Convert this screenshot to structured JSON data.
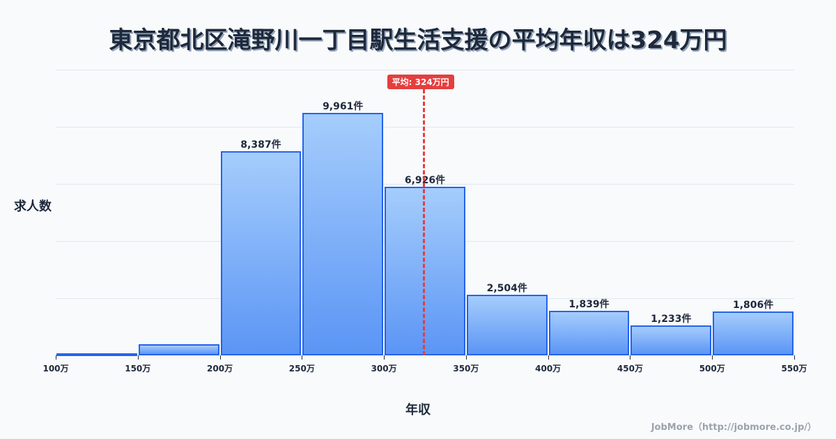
{
  "title": "東京都北区滝野川一丁目駅生活支援の平均年収は324万円",
  "footer": "JobMore（http://jobmore.co.jp/）",
  "colors": {
    "bar_top": "#a5cdfc",
    "bar_bottom": "#5b95f5",
    "bar_border": "#2563eb",
    "average_line": "#e53e3e",
    "background": "#f8fafc",
    "text": "#1e293b"
  },
  "chart_data": {
    "type": "bar",
    "title": "東京都北区滝野川一丁目駅生活支援の平均年収は324万円",
    "xlabel": "年収",
    "ylabel": "求人数",
    "bin_edges": [
      100,
      150,
      200,
      250,
      300,
      350,
      400,
      450,
      500,
      550
    ],
    "tick_labels": [
      "100万",
      "150万",
      "200万",
      "250万",
      "300万",
      "350万",
      "400万",
      "450万",
      "500万",
      "550万"
    ],
    "categories": [
      "100-150万",
      "150-200万",
      "200-250万",
      "250-300万",
      "300-350万",
      "350-400万",
      "400-450万",
      "450-500万",
      "500-550万"
    ],
    "values": [
      0,
      450,
      8387,
      9961,
      6926,
      2504,
      1839,
      1233,
      1806
    ],
    "value_labels": [
      "",
      "",
      "8,387件",
      "9,961件",
      "6,926件",
      "2,504件",
      "1,839件",
      "1,233件",
      "1,806件"
    ],
    "ylim": [
      0,
      11740
    ],
    "grid": true,
    "average": {
      "value": 324,
      "label": "平均: 324万円"
    },
    "legend": null
  }
}
